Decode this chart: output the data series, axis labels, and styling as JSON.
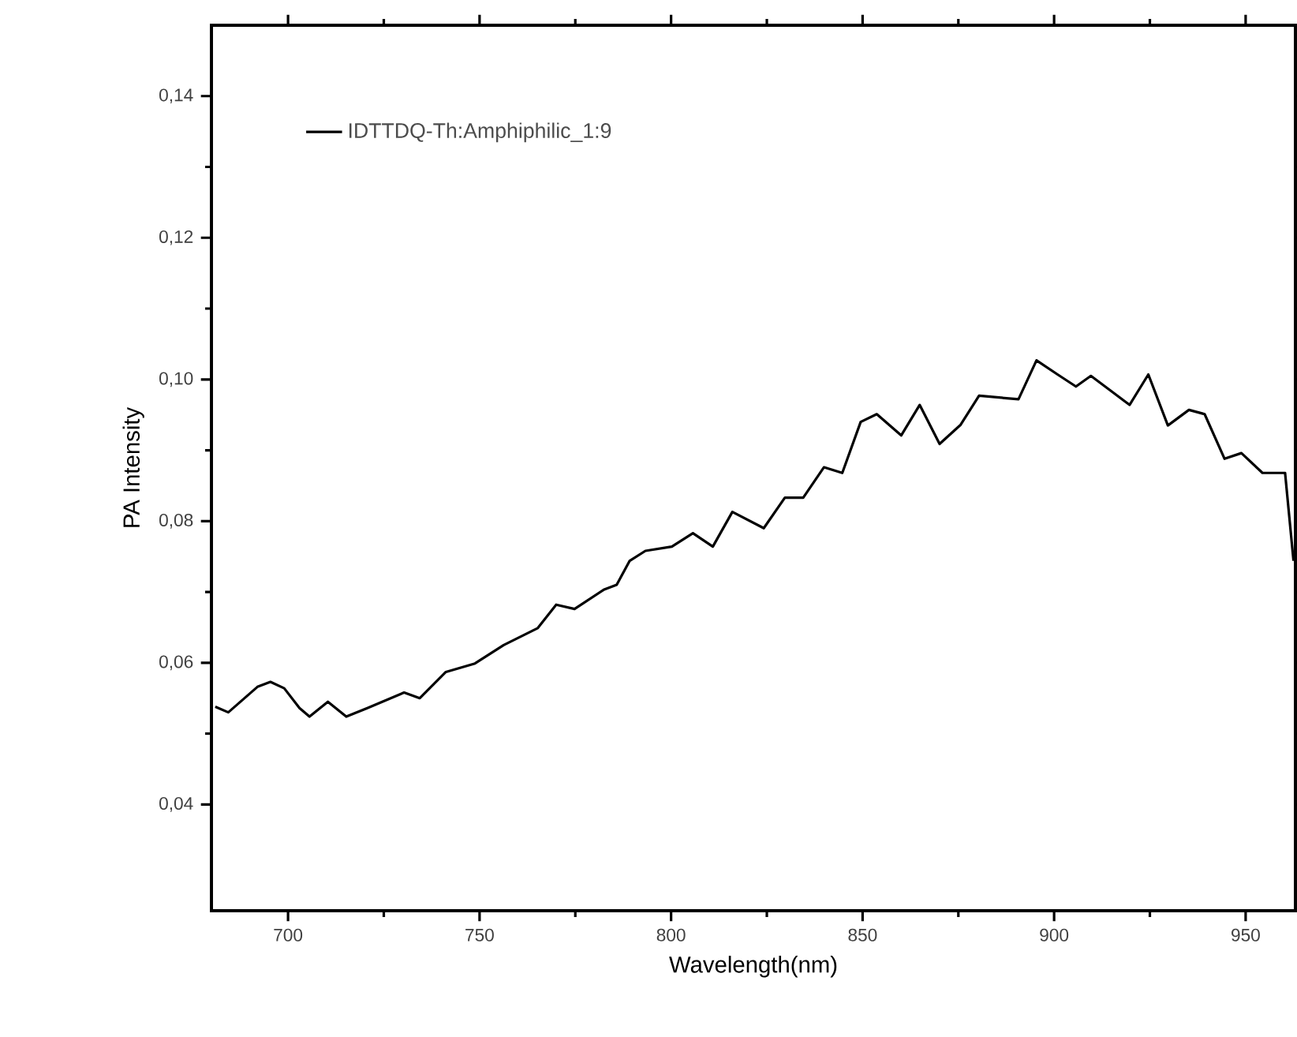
{
  "chart_data": {
    "type": "line",
    "xlabel": "Wavelength(nm)",
    "ylabel": "PA Intensity",
    "xlim": [
      680,
      963
    ],
    "ylim": [
      0.025,
      0.15
    ],
    "xticks": [
      700,
      750,
      800,
      850,
      900,
      950
    ],
    "yticks": [
      {
        "value": 0.04,
        "label": "0,04"
      },
      {
        "value": 0.06,
        "label": "0,06"
      },
      {
        "value": 0.08,
        "label": "0,08"
      },
      {
        "value": 0.1,
        "label": "0,10"
      },
      {
        "value": 0.12,
        "label": "0,12"
      },
      {
        "value": 0.14,
        "label": "0,14"
      }
    ],
    "grid": false,
    "legend": "top left",
    "marker": "none",
    "line_style": "solid",
    "series": [
      {
        "name": "IDTTDQ-Th:Amphiphilic_1:9",
        "color": "#000000",
        "x": [
          681,
          684.4,
          692,
          695.4,
          699,
          703,
          705.6,
          710.4,
          715.2,
          720.7,
          730.3,
          734.4,
          741.2,
          748.8,
          756.3,
          765.2,
          770,
          774.8,
          782.4,
          785.8,
          789.2,
          793.3,
          800.2,
          805.7,
          810.9,
          816,
          824.2,
          829.7,
          834.5,
          839.9,
          844.7,
          849.5,
          853.7,
          860.1,
          864.9,
          870.1,
          875.6,
          880.4,
          890.7,
          895.4,
          900.9,
          905.7,
          909.6,
          915.3,
          919.7,
          924.6,
          929.7,
          935.2,
          939.3,
          944.5,
          948.9,
          954.4,
          960.3,
          962.5
        ],
        "values": [
          0.0538,
          0.053,
          0.0566,
          0.0573,
          0.0564,
          0.0536,
          0.0524,
          0.0545,
          0.0524,
          0.0536,
          0.0558,
          0.055,
          0.0587,
          0.0599,
          0.0625,
          0.0649,
          0.0682,
          0.0676,
          0.0703,
          0.071,
          0.0744,
          0.0758,
          0.0764,
          0.0783,
          0.0764,
          0.0813,
          0.079,
          0.0833,
          0.0833,
          0.0876,
          0.0868,
          0.094,
          0.0951,
          0.0921,
          0.0964,
          0.0909,
          0.0936,
          0.0977,
          0.0972,
          0.1027,
          0.1007,
          0.099,
          0.1005,
          0.0982,
          0.0964,
          0.1007,
          0.0935,
          0.0957,
          0.0951,
          0.0888,
          0.0896,
          0.0868,
          0.0868,
          0.0744
        ]
      }
    ]
  }
}
